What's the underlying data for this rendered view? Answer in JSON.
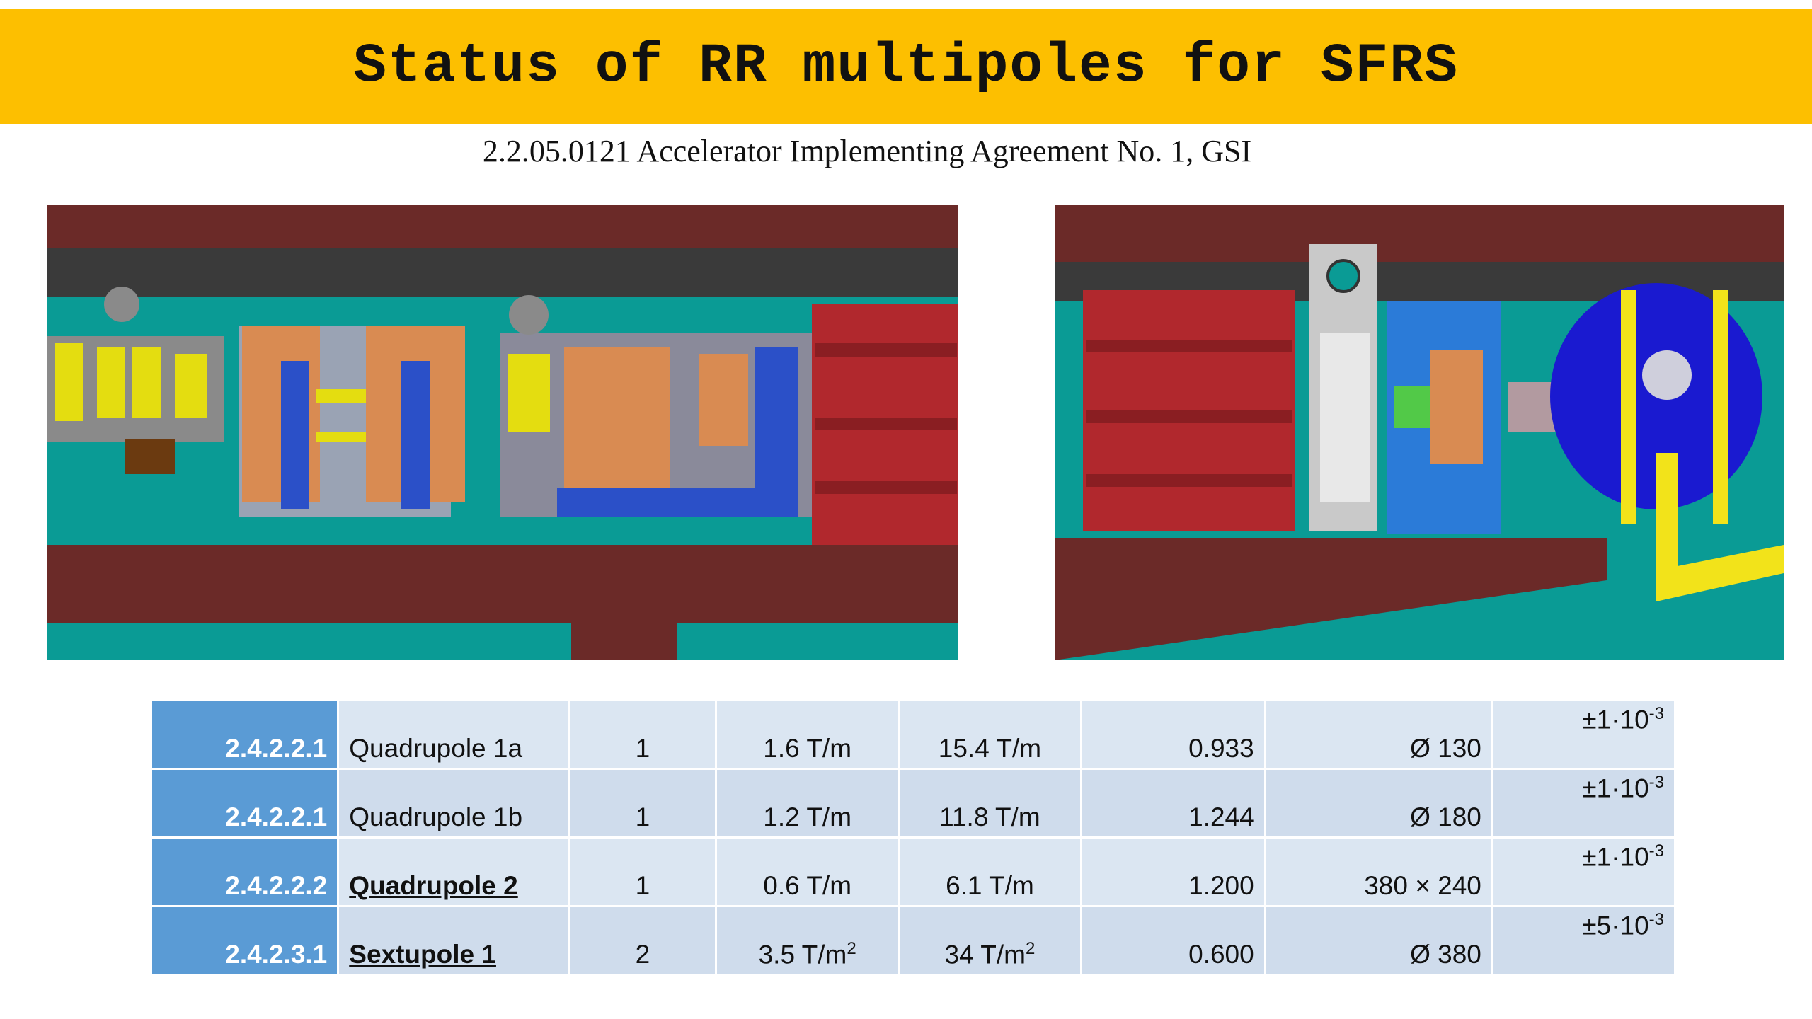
{
  "title": "Status of RR multipoles for SFRS",
  "subtitle": "2.2.05.0121 Accelerator Implementing Agreement No. 1, GSI",
  "colors": {
    "title_bar": "#fdbf00",
    "code_cell": "#5a9bd5",
    "row_light": "#dbe6f2",
    "row_dark": "#cfdcec"
  },
  "rows": [
    {
      "code": "2.4.2.2.1",
      "name": "Quadrupole 1a",
      "count": "1",
      "grad_min": "1.6 T/m",
      "grad_max": "15.4 T/m",
      "length": "0.933",
      "aperture": "Ø 130",
      "tol_prefix": "±1·10",
      "tol_exp": "-3",
      "bold": false,
      "unit_sup": ""
    },
    {
      "code": "2.4.2.2.1",
      "name": "Quadrupole 1b",
      "count": "1",
      "grad_min": "1.2 T/m",
      "grad_max": "11.8 T/m",
      "length": "1.244",
      "aperture": "Ø 180",
      "tol_prefix": "±1·10",
      "tol_exp": "-3",
      "bold": false,
      "unit_sup": ""
    },
    {
      "code": "2.4.2.2.2",
      "name": "Quadrupole 2",
      "count": "1",
      "grad_min": "0.6 T/m",
      "grad_max": "6.1 T/m",
      "length": "1.200",
      "aperture": "380 × 240",
      "tol_prefix": "±1·10",
      "tol_exp": "-3",
      "bold": true,
      "unit_sup": ""
    },
    {
      "code": "2.4.2.3.1",
      "name": "Sextupole 1",
      "count": "2",
      "grad_min": "3.5 T/m",
      "grad_max": "34 T/m",
      "length": "0.600",
      "aperture": "Ø 380",
      "tol_prefix": "±5·10",
      "tol_exp": "-3",
      "bold": true,
      "unit_sup": "2"
    }
  ]
}
